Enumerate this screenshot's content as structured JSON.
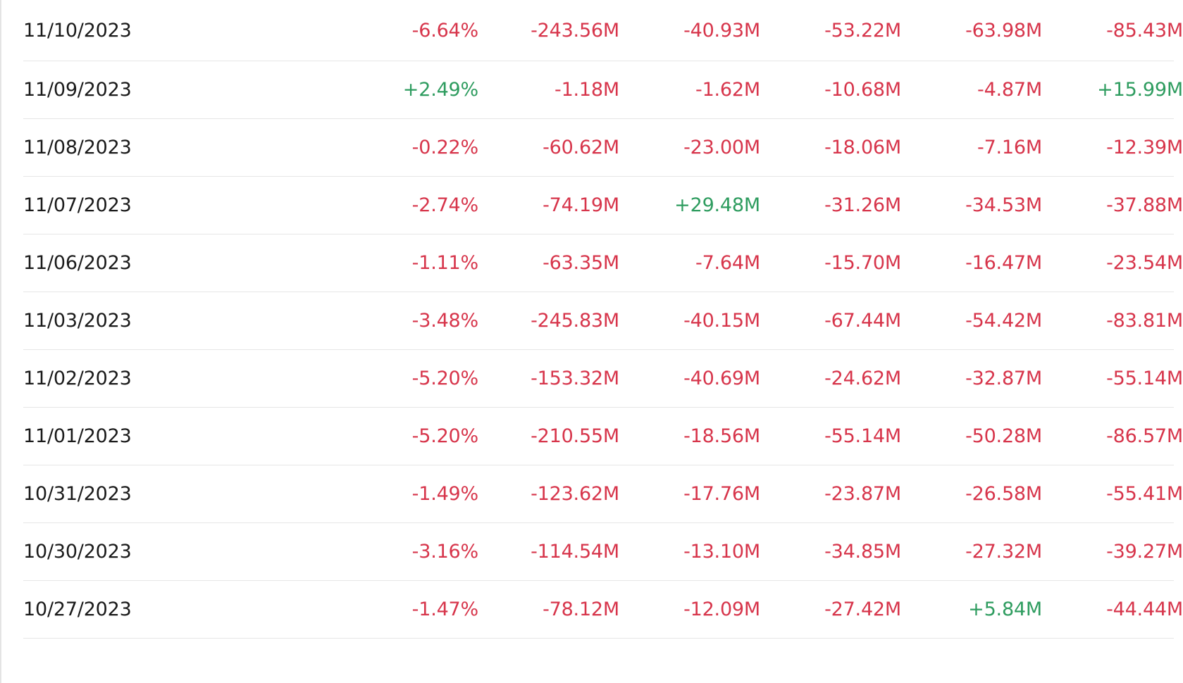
{
  "colors": {
    "negative": "#d7354b",
    "positive": "#2e9c5f",
    "text": "#1a1a1a",
    "divider": "#e6e6e6"
  },
  "rows": [
    {
      "date": "11/10/2023",
      "values": [
        "-6.64%",
        "-243.56M",
        "-40.93M",
        "-53.22M",
        "-63.98M",
        "-85.43M"
      ]
    },
    {
      "date": "11/09/2023",
      "values": [
        "+2.49%",
        "-1.18M",
        "-1.62M",
        "-10.68M",
        "-4.87M",
        "+15.99M"
      ]
    },
    {
      "date": "11/08/2023",
      "values": [
        "-0.22%",
        "-60.62M",
        "-23.00M",
        "-18.06M",
        "-7.16M",
        "-12.39M"
      ]
    },
    {
      "date": "11/07/2023",
      "values": [
        "-2.74%",
        "-74.19M",
        "+29.48M",
        "-31.26M",
        "-34.53M",
        "-37.88M"
      ]
    },
    {
      "date": "11/06/2023",
      "values": [
        "-1.11%",
        "-63.35M",
        "-7.64M",
        "-15.70M",
        "-16.47M",
        "-23.54M"
      ]
    },
    {
      "date": "11/03/2023",
      "values": [
        "-3.48%",
        "-245.83M",
        "-40.15M",
        "-67.44M",
        "-54.42M",
        "-83.81M"
      ]
    },
    {
      "date": "11/02/2023",
      "values": [
        "-5.20%",
        "-153.32M",
        "-40.69M",
        "-24.62M",
        "-32.87M",
        "-55.14M"
      ]
    },
    {
      "date": "11/01/2023",
      "values": [
        "-5.20%",
        "-210.55M",
        "-18.56M",
        "-55.14M",
        "-50.28M",
        "-86.57M"
      ]
    },
    {
      "date": "10/31/2023",
      "values": [
        "-1.49%",
        "-123.62M",
        "-17.76M",
        "-23.87M",
        "-26.58M",
        "-55.41M"
      ]
    },
    {
      "date": "10/30/2023",
      "values": [
        "-3.16%",
        "-114.54M",
        "-13.10M",
        "-34.85M",
        "-27.32M",
        "-39.27M"
      ]
    },
    {
      "date": "10/27/2023",
      "values": [
        "-1.47%",
        "-78.12M",
        "-12.09M",
        "-27.42M",
        "+5.84M",
        "-44.44M"
      ]
    }
  ]
}
